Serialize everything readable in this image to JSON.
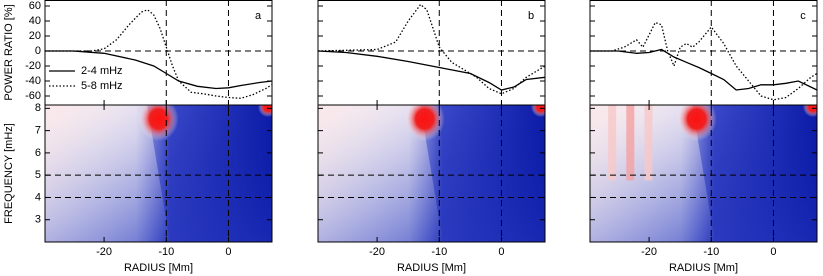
{
  "chart_data": [
    {
      "type": "line",
      "label": "a",
      "ylabel": "POWER RATIO [%]",
      "ytick_labels": true,
      "xlim": [
        -29.5,
        7
      ],
      "xticks": [
        -20,
        -10,
        0
      ],
      "ylim": [
        -72,
        68
      ],
      "yticks": [
        -60,
        -40,
        -20,
        0,
        20,
        40,
        60
      ],
      "hlines": [
        0
      ],
      "vlines": [
        -10,
        0
      ],
      "legend": "left",
      "series": [
        {
          "name": "2-4 mHz",
          "color": "#000000",
          "style": "solid",
          "x": [
            -29.5,
            -25,
            -20,
            -15,
            -12,
            -10,
            -8,
            -5,
            -2,
            0,
            2,
            5,
            7
          ],
          "values": [
            0,
            0,
            -3,
            -12,
            -20,
            -30,
            -40,
            -47,
            -50,
            -49,
            -46,
            -42,
            -40
          ]
        },
        {
          "name": "5-8 mHz",
          "color": "#000000",
          "style": "dotted",
          "x": [
            -29.5,
            -22,
            -20,
            -18,
            -16,
            -14,
            -13,
            -12,
            -11,
            -10,
            -9,
            -8,
            -6,
            -4,
            -2,
            0,
            2,
            4,
            6,
            7
          ],
          "values": [
            0,
            0,
            3,
            15,
            35,
            52,
            55,
            48,
            30,
            5,
            -20,
            -40,
            -55,
            -57,
            -60,
            -62,
            -63,
            -58,
            -50,
            -45
          ]
        }
      ],
      "heatmap": {
        "ylabel": "FREQUENCY [mHz]",
        "xlabel": "RADIUS [Mm]",
        "ylim": [
          2.0,
          8.15
        ],
        "yticks": [
          3,
          4,
          5,
          6,
          7,
          8
        ],
        "hlines": [
          4,
          5
        ]
      }
    },
    {
      "type": "line",
      "label": "b",
      "ytick_labels": false,
      "xlim": [
        -29.5,
        7
      ],
      "xticks": [
        -20,
        -10,
        0
      ],
      "ylim": [
        -72,
        68
      ],
      "yticks": [
        -60,
        -40,
        -20,
        0,
        20,
        40,
        60
      ],
      "hlines": [
        0
      ],
      "vlines": [
        -10,
        0
      ],
      "series": [
        {
          "color": "#000000",
          "style": "solid",
          "x": [
            -29.5,
            -25,
            -20,
            -15,
            -10,
            -5,
            -2,
            0,
            2,
            4,
            7
          ],
          "values": [
            0,
            -2,
            -7,
            -14,
            -22,
            -30,
            -42,
            -52,
            -48,
            -38,
            -35
          ]
        },
        {
          "color": "#000000",
          "style": "dotted",
          "x": [
            -29.5,
            -20,
            -17,
            -15,
            -13,
            -12,
            -11,
            -10,
            -8,
            -6,
            -4,
            -2,
            0,
            2,
            4,
            6,
            7
          ],
          "values": [
            0,
            2,
            12,
            40,
            62,
            55,
            30,
            5,
            -15,
            -25,
            -35,
            -50,
            -57,
            -50,
            -35,
            -25,
            -20
          ]
        }
      ],
      "heatmap": {
        "xlabel": "RADIUS [Mm]",
        "ylim": [
          2.0,
          8.15
        ],
        "yticks": [
          3,
          4,
          5,
          6,
          7,
          8
        ],
        "hlines": [
          4,
          5
        ]
      }
    },
    {
      "type": "line",
      "label": "c",
      "ytick_labels": false,
      "xlim": [
        -29.5,
        7
      ],
      "xticks": [
        -20,
        -10,
        0
      ],
      "ylim": [
        -72,
        68
      ],
      "yticks": [
        -60,
        -40,
        -20,
        0,
        20,
        40,
        60
      ],
      "hlines": [
        0
      ],
      "vlines": [
        -10,
        0
      ],
      "series": [
        {
          "color": "#000000",
          "style": "solid",
          "x": [
            -29.5,
            -25,
            -22,
            -20,
            -18,
            -16,
            -14,
            -12,
            -10,
            -8,
            -6,
            -4,
            -2,
            0,
            2,
            4,
            6,
            7
          ],
          "values": [
            0,
            0,
            -3,
            -2,
            2,
            -8,
            -15,
            -22,
            -30,
            -38,
            -52,
            -50,
            -45,
            -45,
            -43,
            -40,
            -48,
            -52
          ]
        },
        {
          "color": "#000000",
          "style": "dotted",
          "x": [
            -29.5,
            -26,
            -24,
            -22,
            -21,
            -19,
            -18,
            -17,
            -16,
            -15,
            -14,
            -13,
            -12,
            -10,
            -8,
            -6,
            -4,
            -2,
            0,
            2,
            4,
            6,
            7
          ],
          "values": [
            0,
            0,
            5,
            15,
            5,
            38,
            35,
            0,
            -20,
            5,
            10,
            5,
            12,
            32,
            10,
            -20,
            -40,
            -60,
            -65,
            -62,
            -50,
            -35,
            -30
          ]
        }
      ],
      "heatmap": {
        "xlabel": "RADIUS [Mm]",
        "ylim": [
          2.0,
          8.15
        ],
        "yticks": [
          3,
          4,
          5,
          6,
          7,
          8
        ],
        "hlines": [
          4,
          5
        ]
      }
    }
  ]
}
